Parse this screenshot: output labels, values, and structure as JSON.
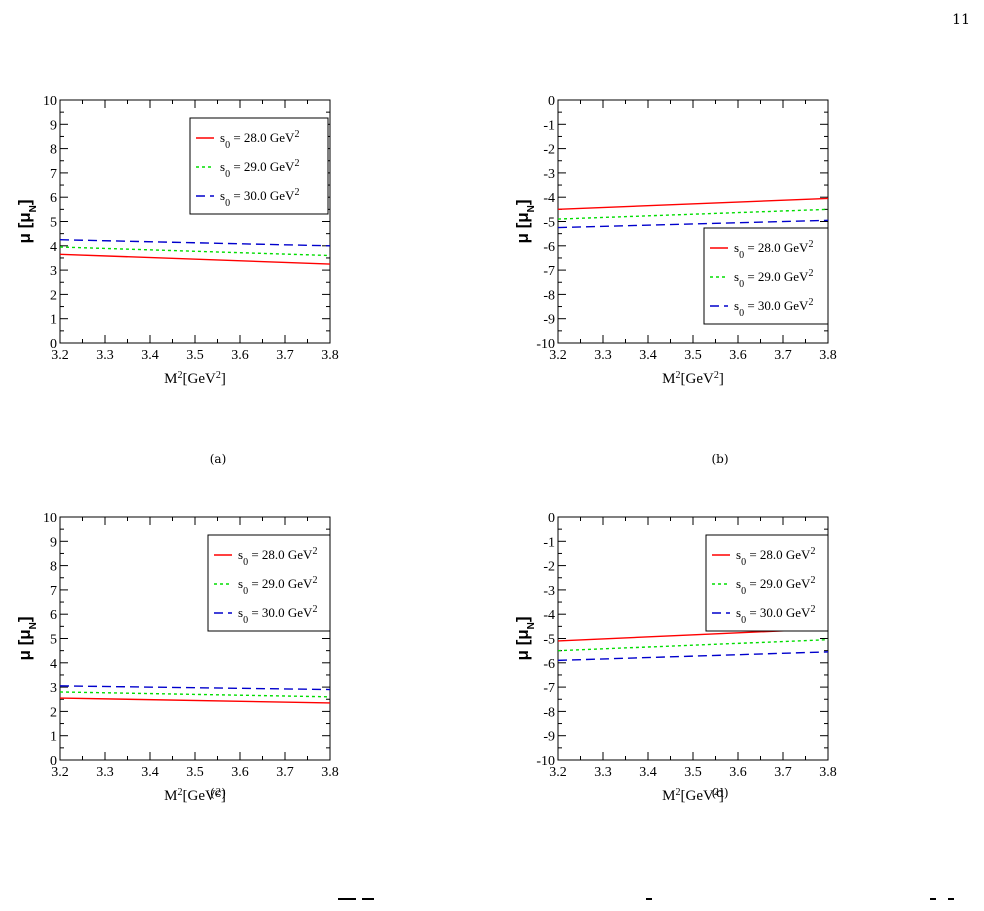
{
  "page": {
    "number": "11"
  },
  "panels": [
    {
      "id": "a",
      "caption": "(a)"
    },
    {
      "id": "b",
      "caption": "(b)"
    },
    {
      "id": "c",
      "caption": "(c)"
    },
    {
      "id": "d",
      "caption": "(d)"
    }
  ],
  "colors": {
    "s0_28": "#ff0000",
    "s0_29": "#00dd00",
    "s0_30": "#0000cc"
  },
  "chart_data": [
    {
      "type": "line",
      "panel": "a",
      "xlabel": "M²[GeV²]",
      "ylabel": "μ [μ_N]",
      "xlim": [
        3.2,
        3.8
      ],
      "ylim": [
        0,
        10
      ],
      "xticks": [
        "3.2",
        "3.3",
        "3.4",
        "3.5",
        "3.6",
        "3.7",
        "3.8"
      ],
      "yticks": [
        "0",
        "1",
        "2",
        "3",
        "4",
        "5",
        "6",
        "7",
        "8",
        "9",
        "10"
      ],
      "legend_placement": "top-center",
      "x": [
        3.2,
        3.8
      ],
      "series": [
        {
          "name": "s₀ = 28.0 GeV²",
          "values": [
            3.65,
            3.25
          ],
          "style": "solid",
          "color": "#ff0000"
        },
        {
          "name": "s₀ = 29.0 GeV²",
          "values": [
            3.95,
            3.6
          ],
          "style": "dotted",
          "color": "#00dd00"
        },
        {
          "name": "s₀ = 30.0 GeV²",
          "values": [
            4.25,
            4.0
          ],
          "style": "dashed",
          "color": "#0000cc"
        }
      ]
    },
    {
      "type": "line",
      "panel": "b",
      "xlabel": "M²[GeV²]",
      "ylabel": "μ [μ_N]",
      "xlim": [
        3.2,
        3.8
      ],
      "ylim": [
        -10,
        0
      ],
      "xticks": [
        "3.2",
        "3.3",
        "3.4",
        "3.5",
        "3.6",
        "3.7",
        "3.8"
      ],
      "yticks": [
        "0",
        "-1",
        "-2",
        "-3",
        "-4",
        "-5",
        "-6",
        "-7",
        "-8",
        "-9",
        "-10"
      ],
      "legend_placement": "bottom-right",
      "x": [
        3.2,
        3.8
      ],
      "series": [
        {
          "name": "s₀ = 28.0 GeV²",
          "values": [
            -4.5,
            -4.05
          ],
          "style": "solid",
          "color": "#ff0000"
        },
        {
          "name": "s₀ = 29.0 GeV²",
          "values": [
            -4.9,
            -4.5
          ],
          "style": "dotted",
          "color": "#00dd00"
        },
        {
          "name": "s₀ = 30.0 GeV²",
          "values": [
            -5.25,
            -4.95
          ],
          "style": "dashed",
          "color": "#0000cc"
        }
      ]
    },
    {
      "type": "line",
      "panel": "c",
      "xlabel": "M²[GeV²]",
      "ylabel": "μ [μ_N]",
      "xlim": [
        3.2,
        3.8
      ],
      "ylim": [
        0,
        10
      ],
      "xticks": [
        "3.2",
        "3.3",
        "3.4",
        "3.5",
        "3.6",
        "3.7",
        "3.8"
      ],
      "yticks": [
        "0",
        "1",
        "2",
        "3",
        "4",
        "5",
        "6",
        "7",
        "8",
        "9",
        "10"
      ],
      "legend_placement": "top-right",
      "x": [
        3.2,
        3.8
      ],
      "series": [
        {
          "name": "s₀ = 28.0 GeV²",
          "values": [
            2.55,
            2.35
          ],
          "style": "solid",
          "color": "#ff0000"
        },
        {
          "name": "s₀ = 29.0 GeV²",
          "values": [
            2.8,
            2.6
          ],
          "style": "dotted",
          "color": "#00dd00"
        },
        {
          "name": "s₀ = 30.0 GeV²",
          "values": [
            3.05,
            2.9
          ],
          "style": "dashed",
          "color": "#0000cc"
        }
      ]
    },
    {
      "type": "line",
      "panel": "d",
      "xlabel": "M²[GeV²]",
      "ylabel": "μ [μ_N]",
      "xlim": [
        3.2,
        3.8
      ],
      "ylim": [
        -10,
        0
      ],
      "xticks": [
        "3.2",
        "3.3",
        "3.4",
        "3.5",
        "3.6",
        "3.7",
        "3.8"
      ],
      "yticks": [
        "0",
        "-1",
        "-2",
        "-3",
        "-4",
        "-5",
        "-6",
        "-7",
        "-8",
        "-9",
        "-10"
      ],
      "legend_placement": "top-right",
      "x": [
        3.2,
        3.8
      ],
      "series": [
        {
          "name": "s₀ = 28.0 GeV²",
          "values": [
            -5.1,
            -4.6
          ],
          "style": "solid",
          "color": "#ff0000"
        },
        {
          "name": "s₀ = 29.0 GeV²",
          "values": [
            -5.5,
            -5.05
          ],
          "style": "dotted",
          "color": "#00dd00"
        },
        {
          "name": "s₀ = 30.0 GeV²",
          "values": [
            -5.9,
            -5.55
          ],
          "style": "dashed",
          "color": "#0000cc"
        }
      ]
    }
  ]
}
